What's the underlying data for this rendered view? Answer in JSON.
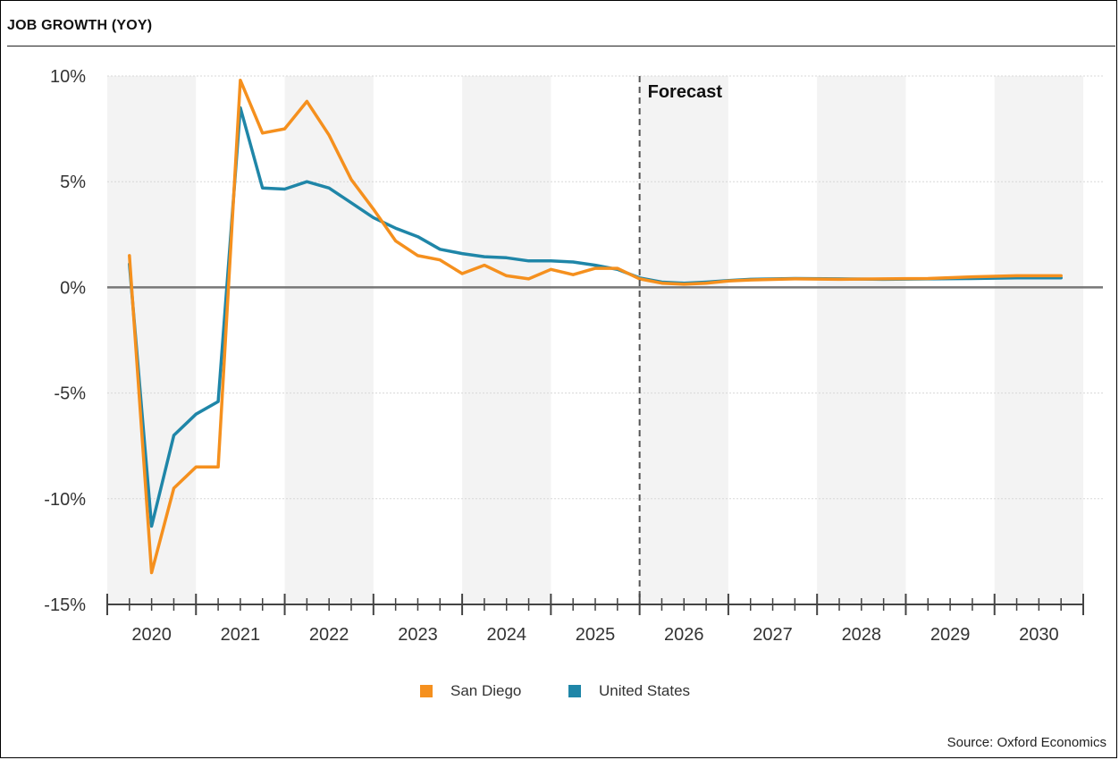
{
  "chart_data": {
    "type": "line",
    "title": "JOB GROWTH (YOY)",
    "source": "Source: Oxford Economics",
    "forecast_label": "Forecast",
    "forecast_start": 2025.75,
    "ylim": [
      -15,
      10
    ],
    "yticks": [
      {
        "value": 10,
        "label": "10%"
      },
      {
        "value": 5,
        "label": "5%"
      },
      {
        "value": 0,
        "label": "0%"
      },
      {
        "value": -5,
        "label": "-5%"
      },
      {
        "value": -10,
        "label": "-10%"
      },
      {
        "value": -15,
        "label": "-15%"
      }
    ],
    "xlim": [
      2019.75,
      2030.75
    ],
    "years": [
      "2020",
      "2021",
      "2022",
      "2023",
      "2024",
      "2025",
      "2026",
      "2027",
      "2028",
      "2029",
      "2030"
    ],
    "grid": true,
    "legend_position": "bottom-center",
    "series": [
      {
        "name": "San Diego",
        "color": "#F5901E",
        "points": [
          [
            2020.0,
            1.5
          ],
          [
            2020.25,
            -13.5
          ],
          [
            2020.5,
            -9.5
          ],
          [
            2020.75,
            -8.5
          ],
          [
            2021.0,
            -8.5
          ],
          [
            2021.25,
            9.8
          ],
          [
            2021.5,
            7.3
          ],
          [
            2021.75,
            7.5
          ],
          [
            2022.0,
            8.8
          ],
          [
            2022.25,
            7.2
          ],
          [
            2022.5,
            5.1
          ],
          [
            2022.75,
            3.7
          ],
          [
            2023.0,
            2.2
          ],
          [
            2023.25,
            1.5
          ],
          [
            2023.5,
            1.3
          ],
          [
            2023.75,
            0.65
          ],
          [
            2024.0,
            1.05
          ],
          [
            2024.25,
            0.55
          ],
          [
            2024.5,
            0.4
          ],
          [
            2024.75,
            0.85
          ],
          [
            2025.0,
            0.6
          ],
          [
            2025.25,
            0.9
          ],
          [
            2025.5,
            0.9
          ],
          [
            2025.75,
            0.4
          ],
          [
            2026.0,
            0.2
          ],
          [
            2026.25,
            0.15
          ],
          [
            2026.5,
            0.2
          ],
          [
            2026.75,
            0.3
          ],
          [
            2027.0,
            0.35
          ],
          [
            2027.5,
            0.4
          ],
          [
            2028.0,
            0.38
          ],
          [
            2028.5,
            0.4
          ],
          [
            2029.0,
            0.42
          ],
          [
            2029.5,
            0.5
          ],
          [
            2030.0,
            0.55
          ],
          [
            2030.5,
            0.55
          ]
        ]
      },
      {
        "name": "United States",
        "color": "#1F86A8",
        "points": [
          [
            2020.0,
            1.1
          ],
          [
            2020.25,
            -11.3
          ],
          [
            2020.5,
            -7.0
          ],
          [
            2020.75,
            -6.0
          ],
          [
            2021.0,
            -5.4
          ],
          [
            2021.25,
            8.5
          ],
          [
            2021.5,
            4.7
          ],
          [
            2021.75,
            4.65
          ],
          [
            2022.0,
            5.0
          ],
          [
            2022.25,
            4.7
          ],
          [
            2022.5,
            4.0
          ],
          [
            2022.75,
            3.3
          ],
          [
            2023.0,
            2.8
          ],
          [
            2023.25,
            2.4
          ],
          [
            2023.5,
            1.8
          ],
          [
            2023.75,
            1.6
          ],
          [
            2024.0,
            1.45
          ],
          [
            2024.25,
            1.4
          ],
          [
            2024.5,
            1.25
          ],
          [
            2024.75,
            1.25
          ],
          [
            2025.0,
            1.2
          ],
          [
            2025.25,
            1.05
          ],
          [
            2025.5,
            0.85
          ],
          [
            2025.75,
            0.45
          ],
          [
            2026.0,
            0.25
          ],
          [
            2026.25,
            0.2
          ],
          [
            2026.5,
            0.25
          ],
          [
            2026.75,
            0.32
          ],
          [
            2027.0,
            0.38
          ],
          [
            2027.5,
            0.42
          ],
          [
            2028.0,
            0.4
          ],
          [
            2028.5,
            0.38
          ],
          [
            2029.0,
            0.4
          ],
          [
            2029.5,
            0.42
          ],
          [
            2030.0,
            0.45
          ],
          [
            2030.5,
            0.45
          ]
        ]
      }
    ]
  }
}
